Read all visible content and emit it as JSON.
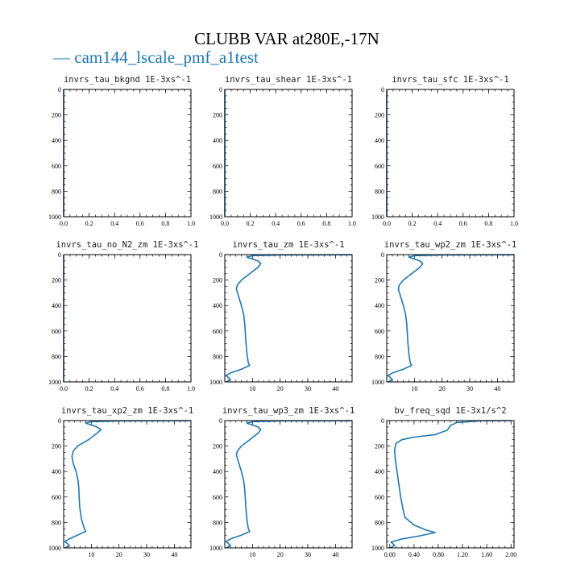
{
  "title": "CLUBB VAR at280E,-17N",
  "legend": {
    "label": "— cam144_lscale_pmf_a1test",
    "color": "#1f77b4"
  },
  "chart_data": [
    {
      "type": "line",
      "title": "invrs_tau_bkgnd   1E-3xs^-1",
      "xlim": [
        0,
        1.0
      ],
      "xticks": [
        0.0,
        0.2,
        0.4,
        0.6,
        0.8,
        1.0
      ],
      "xtick_labels": [
        "0.0",
        "0.2",
        "0.4",
        "0.6",
        "0.8",
        "1.0"
      ],
      "xminor": 0.05,
      "ylim": [
        0,
        1000
      ],
      "yticks": [
        0,
        200,
        400,
        600,
        800,
        1000
      ],
      "ytick_labels": [
        "0",
        "200",
        "400",
        "600",
        "800",
        "1000"
      ],
      "y_inverted": true,
      "series": [
        {
          "x": [
            0,
            0
          ],
          "y": [
            0,
            1000
          ]
        }
      ]
    },
    {
      "type": "line",
      "title": "invrs_tau_shear   1E-3xs^-1",
      "xlim": [
        0,
        1.0
      ],
      "xticks": [
        0.0,
        0.2,
        0.4,
        0.6,
        0.8,
        1.0
      ],
      "xtick_labels": [
        "0.0",
        "0.2",
        "0.4",
        "0.6",
        "0.8",
        "1.0"
      ],
      "xminor": 0.05,
      "ylim": [
        0,
        1000
      ],
      "yticks": [
        0,
        200,
        400,
        600,
        800,
        1000
      ],
      "ytick_labels": [
        "0",
        "200",
        "400",
        "600",
        "800",
        "1000"
      ],
      "y_inverted": true,
      "series": [
        {
          "x": [
            0,
            0
          ],
          "y": [
            0,
            1000
          ]
        }
      ]
    },
    {
      "type": "line",
      "title": "invrs_tau_sfc   1E-3xs^-1",
      "xlim": [
        0,
        1.0
      ],
      "xticks": [
        0.0,
        0.2,
        0.4,
        0.6,
        0.8,
        1.0
      ],
      "xtick_labels": [
        "0.0",
        "0.2",
        "0.4",
        "0.6",
        "0.8",
        "1.0"
      ],
      "xminor": 0.05,
      "ylim": [
        0,
        1000
      ],
      "yticks": [
        0,
        200,
        400,
        600,
        800,
        1000
      ],
      "ytick_labels": [
        "0",
        "200",
        "400",
        "600",
        "800",
        "1000"
      ],
      "y_inverted": true,
      "series": [
        {
          "x": [
            0,
            0
          ],
          "y": [
            0,
            1000
          ]
        }
      ]
    },
    {
      "type": "line",
      "title": "invrs_tau_no_N2_zm   1E-3xs^-1",
      "xlim": [
        0,
        1.0
      ],
      "xticks": [
        0.0,
        0.2,
        0.4,
        0.6,
        0.8,
        1.0
      ],
      "xtick_labels": [
        "0.0",
        "0.2",
        "0.4",
        "0.6",
        "0.8",
        "1.0"
      ],
      "xminor": 0.05,
      "ylim": [
        0,
        1000
      ],
      "yticks": [
        0,
        200,
        400,
        600,
        800,
        1000
      ],
      "ytick_labels": [
        "0",
        "200",
        "400",
        "600",
        "800",
        "1000"
      ],
      "y_inverted": true,
      "series": [
        {
          "x": [
            0,
            0
          ],
          "y": [
            0,
            1000
          ]
        }
      ]
    },
    {
      "type": "line",
      "title": "invrs_tau_zm   1E-3xs^-1",
      "xlim": [
        0,
        46
      ],
      "xticks": [
        10,
        20,
        30,
        40
      ],
      "xtick_labels": [
        "10",
        "20",
        "30",
        "40"
      ],
      "xminor": 2,
      "ylim": [
        0,
        1000
      ],
      "yticks": [
        0,
        200,
        400,
        600,
        800,
        1000
      ],
      "ytick_labels": [
        "0",
        "200",
        "400",
        "600",
        "800",
        "1000"
      ],
      "y_inverted": true,
      "series": [
        {
          "x": [
            46,
            20,
            10,
            8,
            10,
            12,
            13,
            12,
            9,
            6,
            4.5,
            4.2,
            5,
            6,
            6.8,
            7.2,
            7.4,
            7.6,
            8,
            8.5,
            9,
            6,
            2,
            0.5,
            2,
            1,
            0.5
          ],
          "y": [
            1,
            3,
            8,
            20,
            35,
            50,
            70,
            100,
            150,
            200,
            240,
            270,
            330,
            400,
            470,
            540,
            600,
            680,
            780,
            850,
            870,
            900,
            930,
            950,
            980,
            995,
            1000
          ]
        }
      ]
    },
    {
      "type": "line",
      "title": "invrs_tau_wp2_zm   1E-3xs^-1",
      "xlim": [
        0,
        46
      ],
      "xticks": [
        10,
        20,
        30,
        40
      ],
      "xtick_labels": [
        "10",
        "20",
        "30",
        "40"
      ],
      "xminor": 2,
      "ylim": [
        0,
        1000
      ],
      "yticks": [
        0,
        200,
        400,
        600,
        800,
        1000
      ],
      "ytick_labels": [
        "0",
        "200",
        "400",
        "600",
        "800",
        "1000"
      ],
      "y_inverted": true,
      "series": [
        {
          "x": [
            46,
            20,
            10,
            8,
            10,
            12,
            13,
            12,
            9,
            6,
            4.5,
            4.2,
            5,
            6,
            6.8,
            7.2,
            7.4,
            7.6,
            8,
            8.5,
            9,
            6,
            2,
            0.5,
            2,
            1,
            0.5
          ],
          "y": [
            1,
            3,
            8,
            20,
            35,
            50,
            70,
            100,
            150,
            200,
            240,
            270,
            330,
            400,
            470,
            540,
            600,
            680,
            780,
            850,
            870,
            900,
            930,
            950,
            980,
            995,
            1000
          ]
        }
      ]
    },
    {
      "type": "line",
      "title": "invrs_tau_xp2_zm   1E-3xs^-1",
      "xlim": [
        0,
        46
      ],
      "xticks": [
        10,
        20,
        30,
        40
      ],
      "xtick_labels": [
        "10",
        "20",
        "30",
        "40"
      ],
      "xminor": 2,
      "ylim": [
        0,
        1000
      ],
      "yticks": [
        0,
        200,
        400,
        600,
        800,
        1000
      ],
      "ytick_labels": [
        "0",
        "200",
        "400",
        "600",
        "800",
        "1000"
      ],
      "y_inverted": true,
      "series": [
        {
          "x": [
            46,
            20,
            10,
            8,
            10,
            12,
            13.5,
            12,
            9,
            5,
            3.5,
            3,
            3.5,
            4.5,
            5.2,
            5.5,
            5.6,
            5.8,
            6.5,
            7.5,
            8,
            5,
            2,
            0.5,
            2,
            1,
            0.5
          ],
          "y": [
            1,
            3,
            8,
            20,
            35,
            50,
            70,
            100,
            150,
            200,
            240,
            280,
            340,
            400,
            470,
            540,
            600,
            680,
            780,
            850,
            870,
            900,
            930,
            950,
            980,
            995,
            1000
          ]
        }
      ]
    },
    {
      "type": "line",
      "title": "invrs_tau_wp3_zm   1E-3xs^-1",
      "xlim": [
        0,
        46
      ],
      "xticks": [
        10,
        20,
        30,
        40
      ],
      "xtick_labels": [
        "10",
        "20",
        "30",
        "40"
      ],
      "xminor": 2,
      "ylim": [
        0,
        1000
      ],
      "yticks": [
        0,
        200,
        400,
        600,
        800,
        1000
      ],
      "ytick_labels": [
        "0",
        "200",
        "400",
        "600",
        "800",
        "1000"
      ],
      "y_inverted": true,
      "series": [
        {
          "x": [
            46,
            20,
            10,
            8,
            10,
            12,
            13,
            12,
            9,
            6,
            4.5,
            4.2,
            5,
            6,
            6.8,
            7.2,
            7.4,
            7.6,
            8,
            8.5,
            9,
            6,
            2,
            0.5,
            2,
            1,
            0.5
          ],
          "y": [
            1,
            3,
            8,
            20,
            35,
            50,
            70,
            100,
            150,
            200,
            240,
            270,
            330,
            400,
            470,
            540,
            600,
            680,
            780,
            850,
            870,
            900,
            930,
            950,
            980,
            995,
            1000
          ]
        }
      ]
    },
    {
      "type": "line",
      "title": "bv_freq_sqd   1E-3x1/s^2",
      "xlim": [
        -0.05,
        2.05
      ],
      "xticks": [
        0.0,
        0.4,
        0.8,
        1.2,
        1.6,
        2.0
      ],
      "xtick_labels": [
        "0.00",
        "0.40",
        "0.80",
        "1.20",
        "1.60",
        "2.00"
      ],
      "xminor": 0.1,
      "ylim": [
        0,
        1000
      ],
      "yticks": [
        0,
        200,
        400,
        600,
        800,
        1000
      ],
      "ytick_labels": [
        "0",
        "200",
        "400",
        "600",
        "800",
        "1000"
      ],
      "y_inverted": true,
      "series": [
        {
          "x": [
            2.0,
            1.5,
            1.1,
            1.0,
            0.95,
            0.75,
            0.4,
            0.2,
            0.1,
            0.08,
            0.09,
            0.12,
            0.15,
            0.18,
            0.2,
            0.22,
            0.25,
            0.4,
            0.6,
            0.75,
            0.5,
            0.2,
            0.02,
            0.08,
            0.01
          ],
          "y": [
            0,
            2,
            15,
            40,
            75,
            110,
            130,
            150,
            180,
            230,
            300,
            400,
            500,
            600,
            650,
            700,
            760,
            820,
            860,
            880,
            905,
            930,
            955,
            980,
            1000
          ]
        }
      ]
    }
  ]
}
